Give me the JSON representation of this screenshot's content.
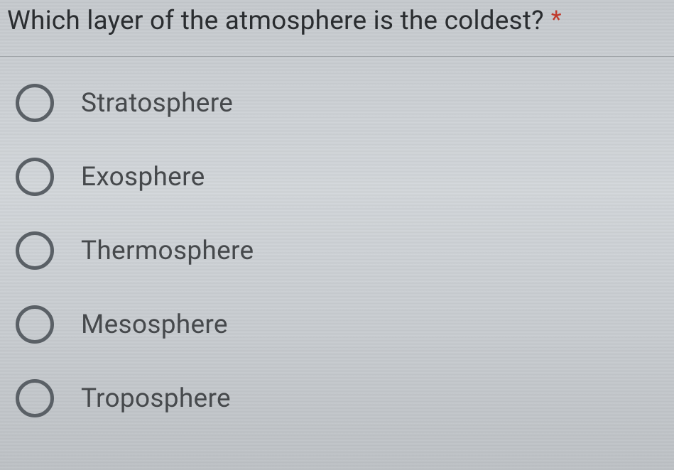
{
  "question": {
    "text": "Which layer of the atmosphere is the coldest?",
    "required_marker": "*"
  },
  "options": [
    {
      "label": "Stratosphere",
      "selected": false
    },
    {
      "label": "Exosphere",
      "selected": false
    },
    {
      "label": "Thermosphere",
      "selected": false
    },
    {
      "label": "Mesosphere",
      "selected": false
    },
    {
      "label": "Troposphere",
      "selected": false
    }
  ],
  "styling": {
    "background_gradient": [
      "#c8ccd0",
      "#d4d8dc",
      "#c0c4c8"
    ],
    "scanline_opacity": 0.04,
    "question_font_size": 37,
    "question_color": "#2a2d30",
    "required_color": "#c0392b",
    "divider_color": "rgba(120,125,130,0.5)",
    "radio_border_color": "#5a6066",
    "radio_border_width": 5,
    "radio_size": 54,
    "option_font_size": 37,
    "option_color": "#46494c",
    "option_gap": 50,
    "radio_label_gap": 38
  }
}
